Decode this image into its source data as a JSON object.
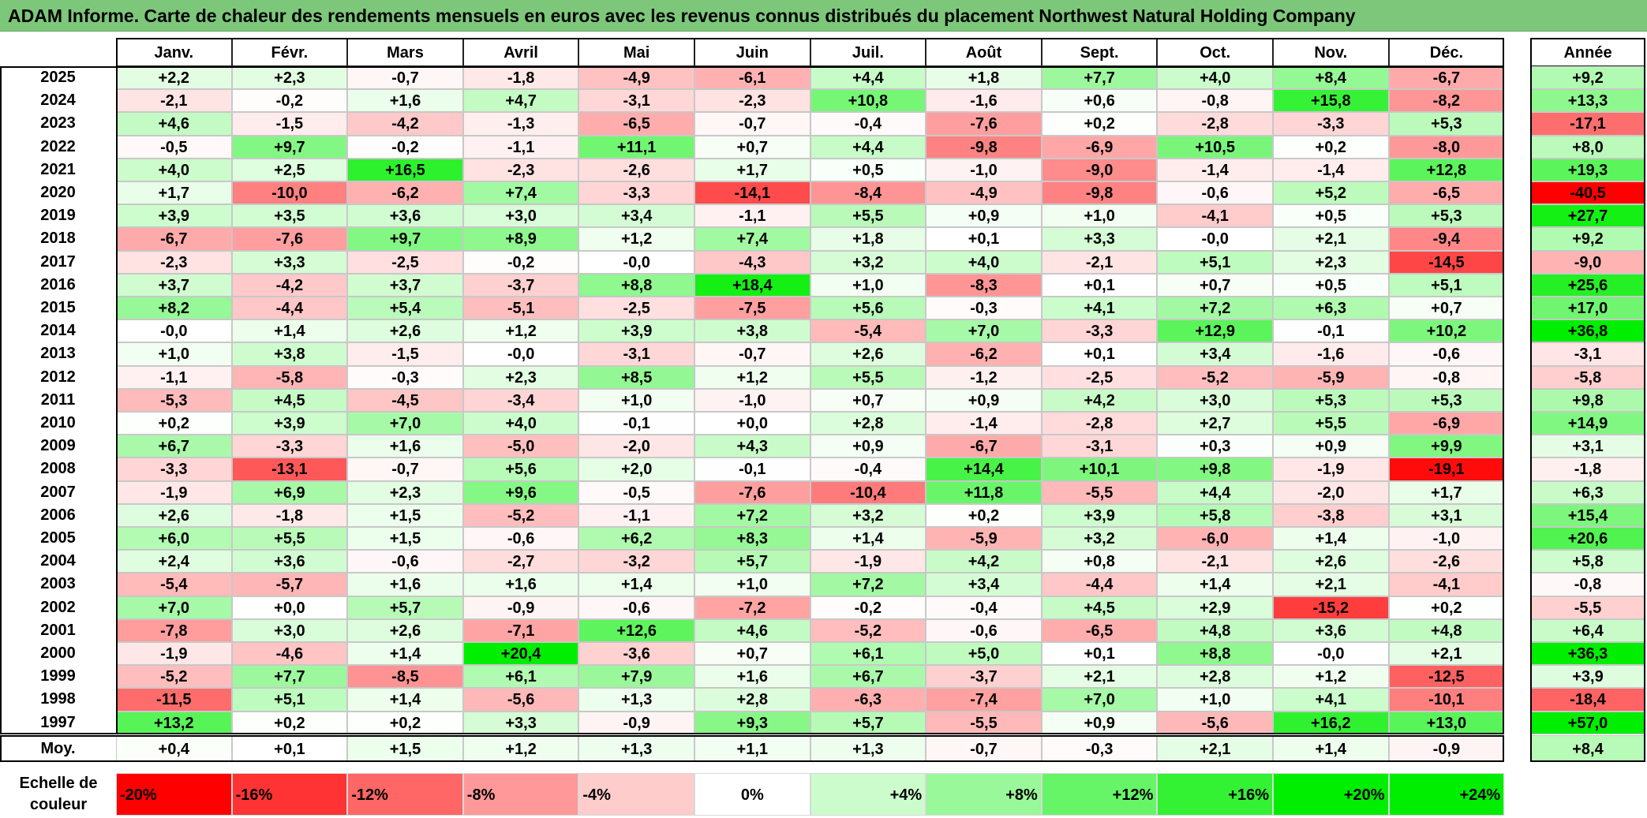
{
  "title": "ADAM Informe. Carte de chaleur des rendements mensuels en euros avec les revenus connus distribués du placement Northwest Natural Holding Company",
  "months": [
    "Janv.",
    "Févr.",
    "Mars",
    "Avril",
    "Mai",
    "Juin",
    "Juil.",
    "Août",
    "Sept.",
    "Oct.",
    "Nov.",
    "Déc."
  ],
  "annual_header": "Année",
  "avg_label": "Moy.",
  "scale_label": "Echelle de couleur",
  "colors": {
    "title_bar": "#7dc77b",
    "negative": "#ff0000",
    "positive": "#00ee00",
    "neutral": "#ffffff"
  },
  "chart_data": {
    "type": "heatmap",
    "title": "ADAM Informe. Carte de chaleur des rendements mensuels en euros avec les revenus connus distribués du placement Northwest Natural Holding Company",
    "x_categories": [
      "Janv.",
      "Févr.",
      "Mars",
      "Avril",
      "Mai",
      "Juin",
      "Juil.",
      "Août",
      "Sept.",
      "Oct.",
      "Nov.",
      "Déc."
    ],
    "rows": [
      {
        "year": "2025",
        "values": [
          "+2,2",
          "+2,3",
          "-0,7",
          "-1,8",
          "-4,9",
          "-6,1",
          "+4,4",
          "+1,8",
          "+7,7",
          "+4,0",
          "+8,4",
          "-6,7"
        ],
        "annual": "+9,2"
      },
      {
        "year": "2024",
        "values": [
          "-2,1",
          "-0,2",
          "+1,6",
          "+4,7",
          "-3,1",
          "-2,3",
          "+10,8",
          "-1,6",
          "+0,6",
          "-0,8",
          "+15,8",
          "-8,2"
        ],
        "annual": "+13,3"
      },
      {
        "year": "2023",
        "values": [
          "+4,6",
          "-1,5",
          "-4,2",
          "-1,3",
          "-6,5",
          "-0,7",
          "-0,4",
          "-7,6",
          "+0,2",
          "-2,8",
          "-3,3",
          "+5,3"
        ],
        "annual": "-17,1"
      },
      {
        "year": "2022",
        "values": [
          "-0,5",
          "+9,7",
          "-0,2",
          "-1,1",
          "+11,1",
          "+0,7",
          "+4,4",
          "-9,8",
          "-6,9",
          "+10,5",
          "+0,2",
          "-8,0"
        ],
        "annual": "+8,0"
      },
      {
        "year": "2021",
        "values": [
          "+4,0",
          "+2,5",
          "+16,5",
          "-2,3",
          "-2,6",
          "+1,7",
          "+0,5",
          "-1,0",
          "-9,0",
          "-1,4",
          "-1,4",
          "+12,8"
        ],
        "annual": "+19,3"
      },
      {
        "year": "2020",
        "values": [
          "+1,7",
          "-10,0",
          "-6,2",
          "+7,4",
          "-3,3",
          "-14,1",
          "-8,4",
          "-4,9",
          "-9,8",
          "-0,6",
          "+5,2",
          "-6,5"
        ],
        "annual": "-40,5"
      },
      {
        "year": "2019",
        "values": [
          "+3,9",
          "+3,5",
          "+3,6",
          "+3,0",
          "+3,4",
          "-1,1",
          "+5,5",
          "+0,9",
          "+1,0",
          "-4,1",
          "+0,5",
          "+5,3"
        ],
        "annual": "+27,7"
      },
      {
        "year": "2018",
        "values": [
          "-6,7",
          "-7,6",
          "+9,7",
          "+8,9",
          "+1,2",
          "+7,4",
          "+1,8",
          "+0,1",
          "+3,3",
          "-0,0",
          "+2,1",
          "-9,4"
        ],
        "annual": "+9,2"
      },
      {
        "year": "2017",
        "values": [
          "-2,3",
          "+3,3",
          "-2,5",
          "-0,2",
          "-0,0",
          "-4,3",
          "+3,2",
          "+4,0",
          "-2,1",
          "+5,1",
          "+2,3",
          "-14,5"
        ],
        "annual": "-9,0"
      },
      {
        "year": "2016",
        "values": [
          "+3,7",
          "-4,2",
          "+3,7",
          "-3,7",
          "+8,8",
          "+18,4",
          "+1,0",
          "-8,3",
          "+0,1",
          "+0,7",
          "+0,5",
          "+5,1"
        ],
        "annual": "+25,6"
      },
      {
        "year": "2015",
        "values": [
          "+8,2",
          "-4,4",
          "+5,4",
          "-5,1",
          "-2,5",
          "-7,5",
          "+5,6",
          "-0,3",
          "+4,1",
          "+7,2",
          "+6,3",
          "+0,7"
        ],
        "annual": "+17,0"
      },
      {
        "year": "2014",
        "values": [
          "-0,0",
          "+1,4",
          "+2,6",
          "+1,2",
          "+3,9",
          "+3,8",
          "-5,4",
          "+7,0",
          "-3,3",
          "+12,9",
          "-0,1",
          "+10,2"
        ],
        "annual": "+36,8"
      },
      {
        "year": "2013",
        "values": [
          "+1,0",
          "+3,8",
          "-1,5",
          "-0,0",
          "-3,1",
          "-0,7",
          "+2,6",
          "-6,2",
          "+0,1",
          "+3,4",
          "-1,6",
          "-0,6"
        ],
        "annual": "-3,1"
      },
      {
        "year": "2012",
        "values": [
          "-1,1",
          "-5,8",
          "-0,3",
          "+2,3",
          "+8,5",
          "+1,2",
          "+5,5",
          "-1,2",
          "-2,5",
          "-5,2",
          "-5,9",
          "-0,8"
        ],
        "annual": "-5,8"
      },
      {
        "year": "2011",
        "values": [
          "-5,3",
          "+4,5",
          "-4,5",
          "-3,4",
          "+1,0",
          "-1,0",
          "+0,7",
          "+0,9",
          "+4,2",
          "+3,0",
          "+5,3",
          "+5,3"
        ],
        "annual": "+9,8"
      },
      {
        "year": "2010",
        "values": [
          "+0,2",
          "+3,9",
          "+7,0",
          "+4,0",
          "-0,1",
          "+0,0",
          "+2,8",
          "-1,4",
          "-2,8",
          "+2,7",
          "+5,5",
          "-6,9"
        ],
        "annual": "+14,9"
      },
      {
        "year": "2009",
        "values": [
          "+6,7",
          "-3,3",
          "+1,6",
          "-5,0",
          "-2,0",
          "+4,3",
          "+0,9",
          "-6,7",
          "-3,1",
          "+0,3",
          "+0,9",
          "+9,9"
        ],
        "annual": "+3,1"
      },
      {
        "year": "2008",
        "values": [
          "-3,3",
          "-13,1",
          "-0,7",
          "+5,6",
          "+2,0",
          "-0,1",
          "-0,4",
          "+14,4",
          "+10,1",
          "+9,8",
          "-1,9",
          "-19,1"
        ],
        "annual": "-1,8"
      },
      {
        "year": "2007",
        "values": [
          "-1,9",
          "+6,9",
          "+2,3",
          "+9,6",
          "-0,5",
          "-7,6",
          "-10,4",
          "+11,8",
          "-5,5",
          "+4,4",
          "-2,0",
          "+1,7"
        ],
        "annual": "+6,3"
      },
      {
        "year": "2006",
        "values": [
          "+2,6",
          "-1,8",
          "+1,5",
          "-5,2",
          "-1,1",
          "+7,2",
          "+3,2",
          "+0,2",
          "+3,9",
          "+5,8",
          "-3,8",
          "+3,1"
        ],
        "annual": "+15,4"
      },
      {
        "year": "2005",
        "values": [
          "+6,0",
          "+5,5",
          "+1,5",
          "-0,6",
          "+6,2",
          "+8,3",
          "+1,4",
          "-5,9",
          "+3,2",
          "-6,0",
          "+1,4",
          "-1,0"
        ],
        "annual": "+20,6"
      },
      {
        "year": "2004",
        "values": [
          "+2,4",
          "+3,6",
          "-0,6",
          "-2,7",
          "-3,2",
          "+5,7",
          "-1,9",
          "+4,2",
          "+0,8",
          "-2,1",
          "+2,6",
          "-2,6"
        ],
        "annual": "+5,8"
      },
      {
        "year": "2003",
        "values": [
          "-5,4",
          "-5,7",
          "+1,6",
          "+1,6",
          "+1,4",
          "+1,0",
          "+7,2",
          "+3,4",
          "-4,4",
          "+1,4",
          "+2,1",
          "-4,1"
        ],
        "annual": "-0,8"
      },
      {
        "year": "2002",
        "values": [
          "+7,0",
          "+0,0",
          "+5,7",
          "-0,9",
          "-0,6",
          "-7,2",
          "-0,2",
          "-0,4",
          "+4,5",
          "+2,9",
          "-15,2",
          "+0,2"
        ],
        "annual": "-5,5"
      },
      {
        "year": "2001",
        "values": [
          "-7,8",
          "+3,0",
          "+2,6",
          "-7,1",
          "+12,6",
          "+4,6",
          "-5,2",
          "-0,6",
          "-6,5",
          "+4,8",
          "+3,6",
          "+4,8"
        ],
        "annual": "+6,4"
      },
      {
        "year": "2000",
        "values": [
          "-1,9",
          "-4,6",
          "+1,4",
          "+20,4",
          "-3,6",
          "+0,7",
          "+6,1",
          "+5,0",
          "+0,1",
          "+8,8",
          "-0,0",
          "+2,1"
        ],
        "annual": "+36,3"
      },
      {
        "year": "1999",
        "values": [
          "-5,2",
          "+7,7",
          "-8,5",
          "+6,1",
          "+7,9",
          "+1,6",
          "+6,7",
          "-3,7",
          "+2,1",
          "+2,8",
          "+1,2",
          "-12,5"
        ],
        "annual": "+3,9"
      },
      {
        "year": "1998",
        "values": [
          "-11,5",
          "+5,1",
          "+1,4",
          "-5,6",
          "+1,3",
          "+2,8",
          "-6,3",
          "-7,4",
          "+7,0",
          "+1,0",
          "+4,1",
          "-10,1"
        ],
        "annual": "-18,4"
      },
      {
        "year": "1997",
        "values": [
          "+13,2",
          "+0,2",
          "+0,2",
          "+3,3",
          "-0,9",
          "+9,3",
          "+5,7",
          "-5,5",
          "+0,9",
          "-5,6",
          "+16,2",
          "+13,0"
        ],
        "annual": "+57,0"
      }
    ],
    "average": {
      "values": [
        "+0,4",
        "+0,1",
        "+1,5",
        "+1,2",
        "+1,3",
        "+1,1",
        "+1,3",
        "-0,7",
        "-0,3",
        "+2,1",
        "+1,4",
        "-0,9"
      ],
      "annual": "+8,4"
    },
    "color_scale": [
      "-20%",
      "-16%",
      "-12%",
      "-8%",
      "-4%",
      "0%",
      "+4%",
      "+8%",
      "+12%",
      "+16%",
      "+20%",
      "+24%"
    ],
    "color_scale_values": [
      -20,
      -16,
      -12,
      -8,
      -4,
      0,
      4,
      8,
      12,
      16,
      20,
      24
    ]
  }
}
